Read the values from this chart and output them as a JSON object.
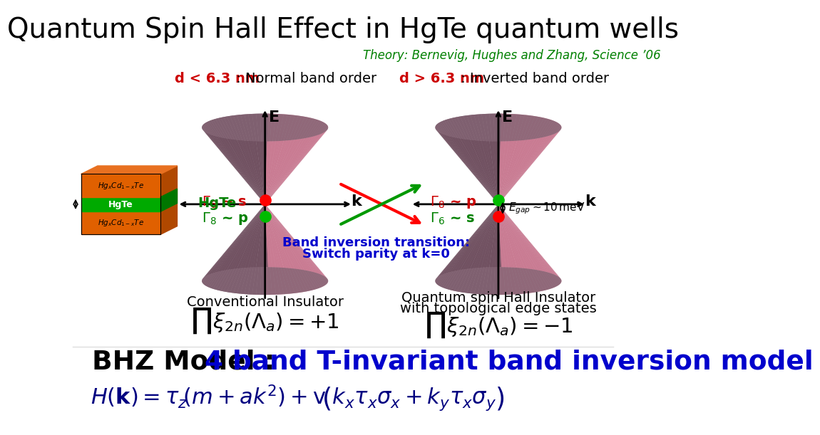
{
  "title": "Quantum Spin Hall Effect in HgTe quantum wells",
  "subtitle": "Theory: Bernevig, Hughes and Zhang, Science ’06",
  "subtitle_color": "#008000",
  "label_left_red": "d < 6.3 nm",
  "label_left_black": " : Normal band order",
  "label_right_red": "d > 6.3 nm",
  "label_right_black": " : Inverted band order",
  "hgte_label": "HgTe",
  "hgte_color": "#008000",
  "red_color": "#cc0000",
  "green_color": "#008000",
  "blue_color": "#0000cc",
  "black_color": "#000000",
  "dark_navy": "#000080",
  "band_inv_text1": "Band inversion transition:",
  "band_inv_text2": "Switch parity at k=0",
  "conv_insulator": "Conventional Insulator",
  "qsh_insulator1": "Quantum spin Hall Insulator",
  "qsh_insulator2": "with topological edge states",
  "bhz_black": "BHZ Model : ",
  "bhz_blue": "4 band T-invariant band inversion model",
  "bg_color": "#ffffff"
}
